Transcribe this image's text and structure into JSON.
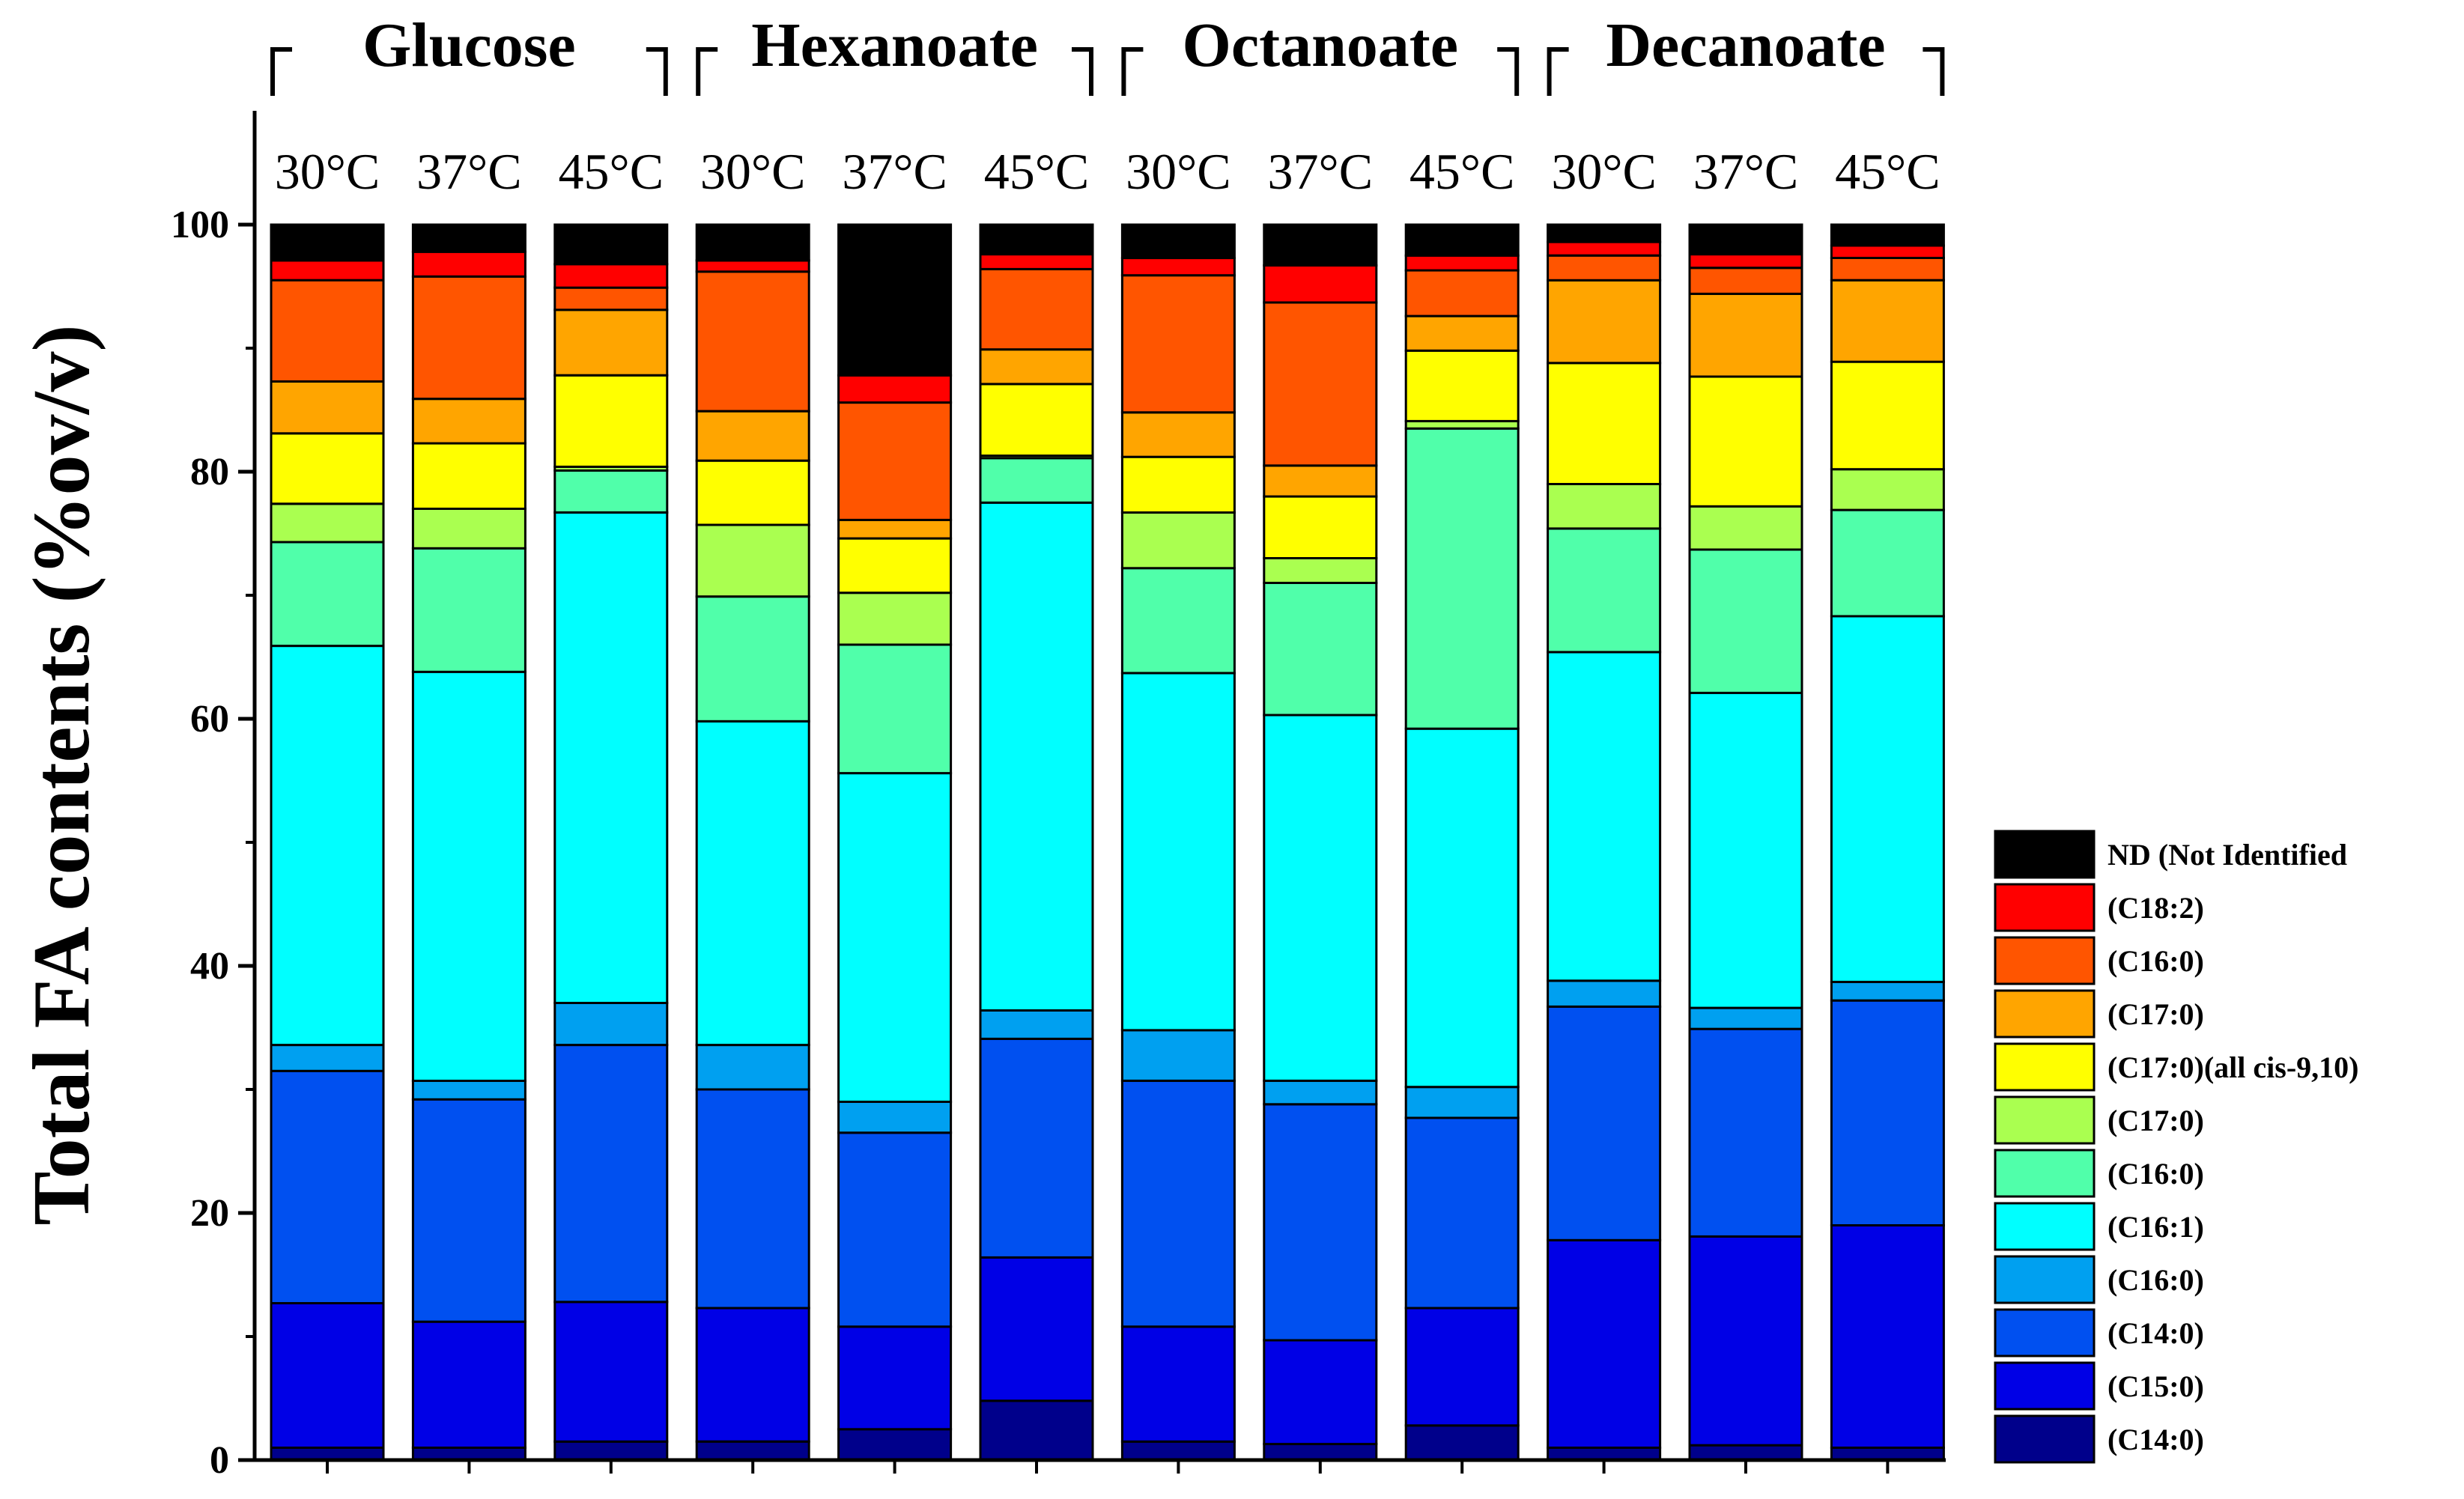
{
  "chart_data": {
    "type": "bar",
    "stacked": true,
    "ylabel": "Total FA contents (%ov/v)",
    "ylim": [
      0,
      110
    ],
    "yticks": [
      "0",
      "20",
      "40",
      "60",
      "80",
      "100"
    ],
    "groups": [
      {
        "name": "Glucose",
        "bars": [
          0,
          1,
          2
        ]
      },
      {
        "name": "Hexanoate",
        "bars": [
          3,
          4,
          5
        ]
      },
      {
        "name": "Octanoate",
        "bars": [
          6,
          7,
          8
        ]
      },
      {
        "name": "Decanoate",
        "bars": [
          9,
          10,
          11
        ]
      }
    ],
    "categories": [
      "30°C",
      "37°C",
      "45°C",
      "30°C",
      "37°C",
      "45°C",
      "30°C",
      "37°C",
      "45°C",
      "30°C",
      "37°C",
      "45°C"
    ],
    "series": [
      {
        "name": "(C14:0)",
        "color": "#00008B",
        "values": [
          1.0,
          1.0,
          1.5,
          1.5,
          2.5,
          4.8,
          1.5,
          1.3,
          2.8,
          1.0,
          1.2,
          1.0
        ]
      },
      {
        "name": "(C15:0)",
        "color": "#0000E6",
        "values": [
          11.7,
          10.2,
          11.3,
          10.8,
          8.3,
          11.6,
          9.3,
          8.4,
          9.5,
          16.8,
          16.9,
          18.0
        ]
      },
      {
        "name": "(C14:0)",
        "color": "#0050F0",
        "values": [
          18.8,
          18.0,
          20.8,
          17.7,
          15.7,
          17.7,
          19.9,
          19.1,
          15.4,
          18.9,
          16.8,
          18.2
        ]
      },
      {
        "name": "(C16:0)",
        "color": "#00A0F0",
        "values": [
          2.1,
          1.5,
          3.4,
          3.6,
          2.5,
          2.3,
          4.1,
          1.9,
          2.5,
          2.1,
          1.7,
          1.5
        ]
      },
      {
        "name": "(C16:1)",
        "color": "#00FFFF",
        "values": [
          32.3,
          33.1,
          39.7,
          26.2,
          26.6,
          41.1,
          28.9,
          29.6,
          29.0,
          26.6,
          25.5,
          29.6
        ]
      },
      {
        "name": "(C16:0)",
        "color": "#50FFAA",
        "values": [
          8.4,
          10.0,
          3.4,
          10.1,
          10.4,
          3.6,
          8.5,
          10.7,
          24.3,
          10.0,
          11.6,
          8.6
        ]
      },
      {
        "name": "(C17:0)",
        "color": "#AAFF50",
        "values": [
          3.1,
          3.2,
          0.3,
          5.8,
          4.2,
          0.2,
          4.5,
          2.0,
          0.6,
          3.6,
          3.5,
          3.3
        ]
      },
      {
        "name": "(C17:0)(all cis-9,10)",
        "color": "#FFFF00",
        "values": [
          5.7,
          5.3,
          7.4,
          5.2,
          4.4,
          5.8,
          4.5,
          5.0,
          5.7,
          9.8,
          10.5,
          8.7
        ]
      },
      {
        "name": "(C17:0)",
        "color": "#FFA500",
        "values": [
          4.2,
          3.6,
          5.3,
          4.0,
          1.5,
          2.8,
          3.6,
          2.5,
          2.8,
          6.7,
          6.7,
          6.6
        ]
      },
      {
        "name": "(C16:0)",
        "color": "#FF5500",
        "values": [
          8.2,
          9.9,
          1.8,
          11.3,
          9.5,
          6.5,
          11.1,
          13.2,
          3.7,
          2.0,
          2.1,
          1.8
        ]
      },
      {
        "name": "(C18:2)",
        "color": "#FF0000",
        "values": [
          1.6,
          2.0,
          1.9,
          0.9,
          2.2,
          1.2,
          1.4,
          3.0,
          1.2,
          1.1,
          1.1,
          1.0
        ]
      },
      {
        "name": "ND (Not Identified",
        "color": "#000000",
        "values": [
          2.9,
          2.2,
          3.2,
          2.9,
          12.2,
          2.4,
          2.7,
          3.3,
          2.5,
          1.4,
          2.4,
          1.7
        ]
      }
    ],
    "legend": {
      "position": "bottom-right",
      "order_top_to_bottom": [
        "ND (Not Identified",
        "(C18:2)",
        "(C16:0)",
        "(C17:0)",
        "(C17:0)(all cis-9,10)",
        "(C17:0)",
        "(C16:0)",
        "(C16:1)",
        "(C16:0)",
        "(C14:0)",
        "(C15:0)",
        "(C14:0)"
      ]
    }
  }
}
